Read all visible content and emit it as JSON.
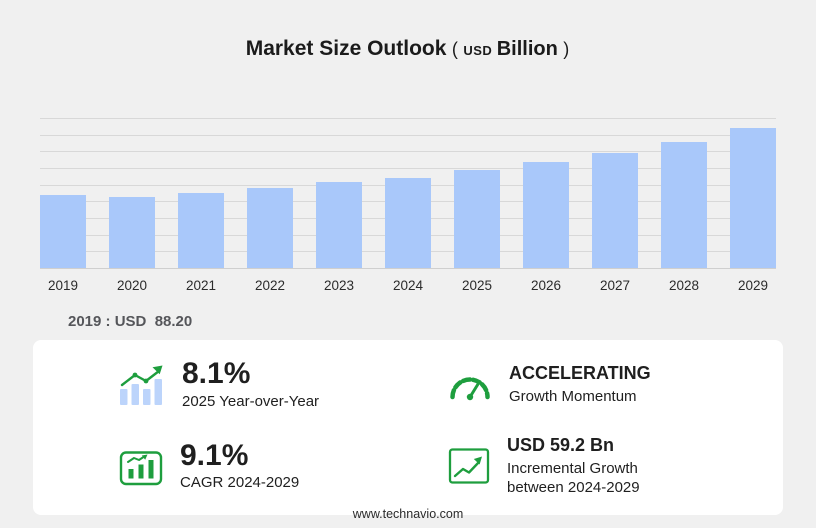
{
  "title": {
    "main": "Market Size Outlook",
    "open_paren": "(",
    "currency": "USD",
    "unit": "Billion",
    "close_paren": ")"
  },
  "chart_data": {
    "type": "bar",
    "title": "Market Size Outlook (USD Billion)",
    "categories": [
      "2019",
      "2020",
      "2021",
      "2022",
      "2023",
      "2024",
      "2025",
      "2026",
      "2027",
      "2028",
      "2029"
    ],
    "values": [
      88.2,
      85.0,
      89.6,
      95.6,
      102.8,
      108.4,
      117.2,
      126.8,
      138.5,
      151.3,
      167.6
    ],
    "unit": "USD Billion",
    "xlabel": "",
    "ylabel": "",
    "ylim": [
      0,
      180
    ],
    "gridline_count": 9,
    "grid": true,
    "legend": false,
    "bar_color": "#a9c8fa"
  },
  "base_year_note": "2019 : USD  88.20",
  "stats": [
    {
      "icon": "bar-chart-growth-icon",
      "value": "8.1%",
      "label": "2025 Year-over-Year"
    },
    {
      "icon": "speedometer-icon",
      "value": "ACCELERATING",
      "label": "Growth Momentum"
    },
    {
      "icon": "framed-bar-chart-icon",
      "value": "9.1%",
      "label": "CAGR 2024-2029"
    },
    {
      "icon": "line-chart-icon",
      "value": "USD 59.2 Bn",
      "label": "Incremental Growth between 2024-2029"
    }
  ],
  "footer": {
    "url": "www.technavio.com"
  },
  "colors": {
    "accent_green": "#1e9e3e",
    "bar_color": "#a9c8fa",
    "background": "#f0f0f0"
  }
}
